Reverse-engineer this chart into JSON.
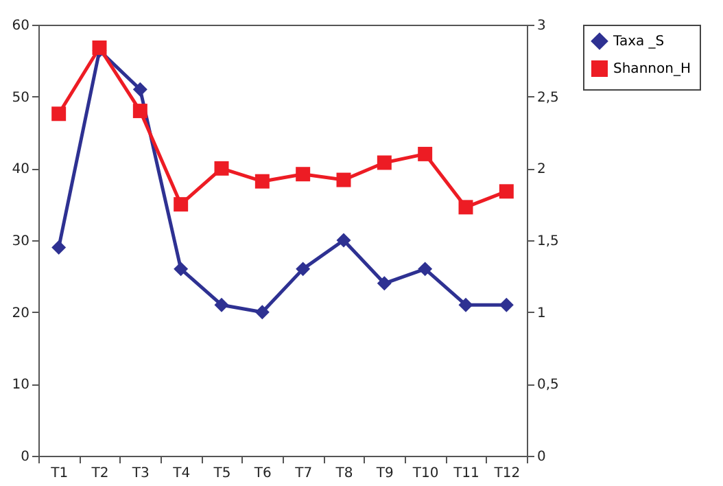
{
  "chart_data": {
    "type": "line",
    "categories": [
      "T1",
      "T2",
      "T3",
      "T4",
      "T5",
      "T6",
      "T7",
      "T8",
      "T9",
      "T10",
      "T11",
      "T12"
    ],
    "series": [
      {
        "name": "Taxa _S",
        "color": "#2e3192",
        "marker": "diamond",
        "values": [
          29,
          56.4,
          51,
          26,
          21,
          20,
          26,
          30,
          24,
          26,
          21,
          21
        ]
      },
      {
        "name": "Shannon_H",
        "color": "#ed1c24",
        "marker": "square",
        "axis": "y2",
        "values": [
          2.38,
          2.84,
          2.4,
          1.75,
          2.0,
          1.91,
          1.96,
          1.92,
          2.04,
          2.1,
          1.73,
          1.84
        ]
      }
    ],
    "ylim": [
      0,
      60
    ],
    "yticks": [
      0,
      10,
      20,
      30,
      40,
      50,
      60
    ],
    "y2lim": [
      0,
      3
    ],
    "y2ticks": [
      0,
      {
        "value": 0.5,
        "label": "0,5"
      },
      1,
      {
        "value": 1.5,
        "label": "1,5"
      },
      2,
      {
        "value": 2.5,
        "label": "2,5"
      },
      3
    ],
    "grid": false,
    "legend": "right",
    "line_style": "solid"
  }
}
